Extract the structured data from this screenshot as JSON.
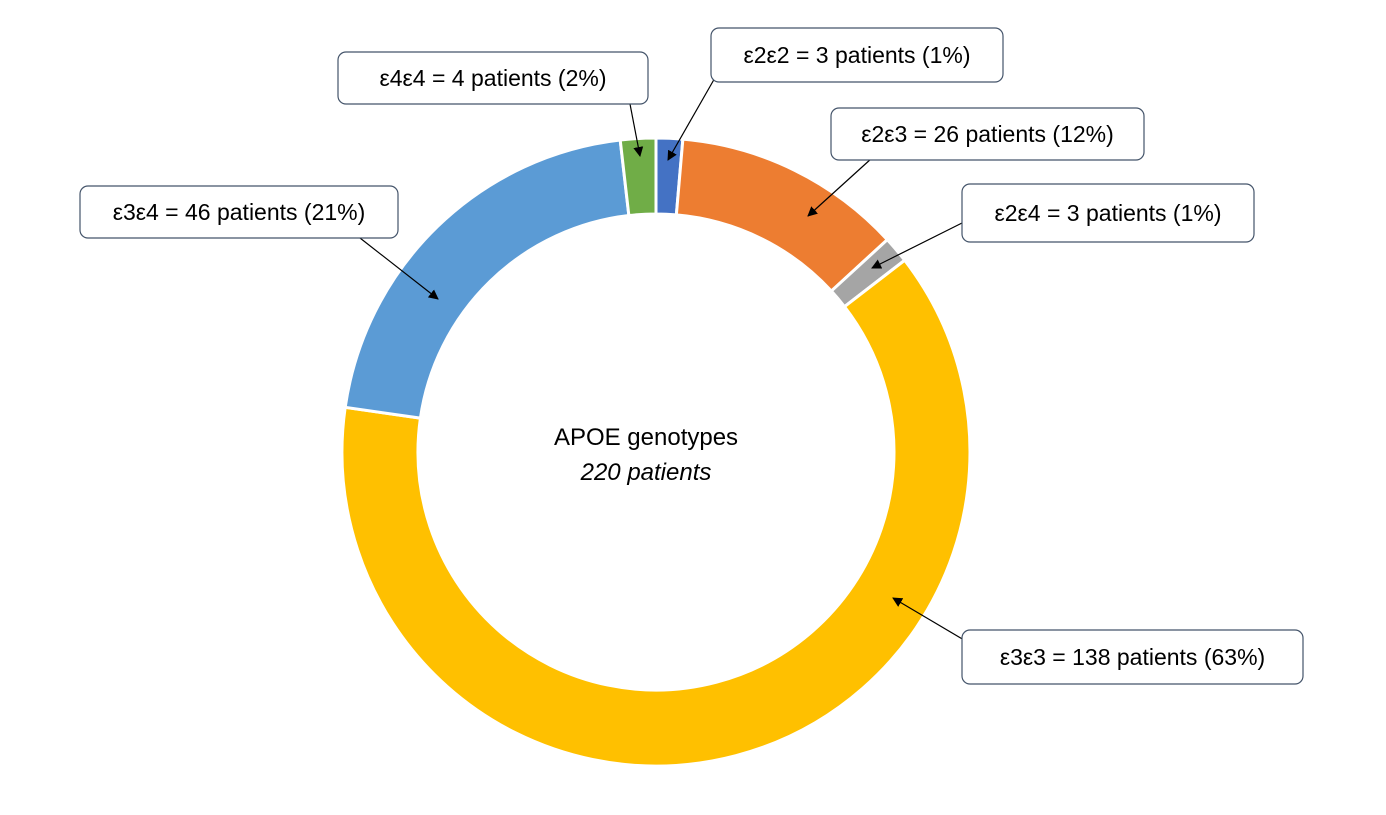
{
  "chart_data": {
    "type": "pie",
    "subtype": "donut",
    "center_title": "APOE genotypes",
    "center_subtitle": "220 patients",
    "slices": [
      {
        "name": "ε2ε2",
        "value": 3,
        "label": "ε2ε2 = 3 patients (1%)",
        "color": "#4472c4"
      },
      {
        "name": "ε2ε3",
        "value": 26,
        "label": "ε2ε3 = 26 patients (12%)",
        "color": "#ed7d31"
      },
      {
        "name": "ε2ε4",
        "value": 3,
        "label": "ε2ε4 = 3 patients (1%)",
        "color": "#a5a5a5"
      },
      {
        "name": "ε3ε3",
        "value": 138,
        "label": "ε3ε3 = 138 patients (63%)",
        "color": "#ffc000"
      },
      {
        "name": "ε3ε4",
        "value": 46,
        "label": "ε3ε4 = 46 patients (21%)",
        "color": "#5b9bd5"
      },
      {
        "name": "ε4ε4",
        "value": 4,
        "label": "ε4ε4 = 4 patients (2%)",
        "color": "#70ad47"
      }
    ]
  }
}
